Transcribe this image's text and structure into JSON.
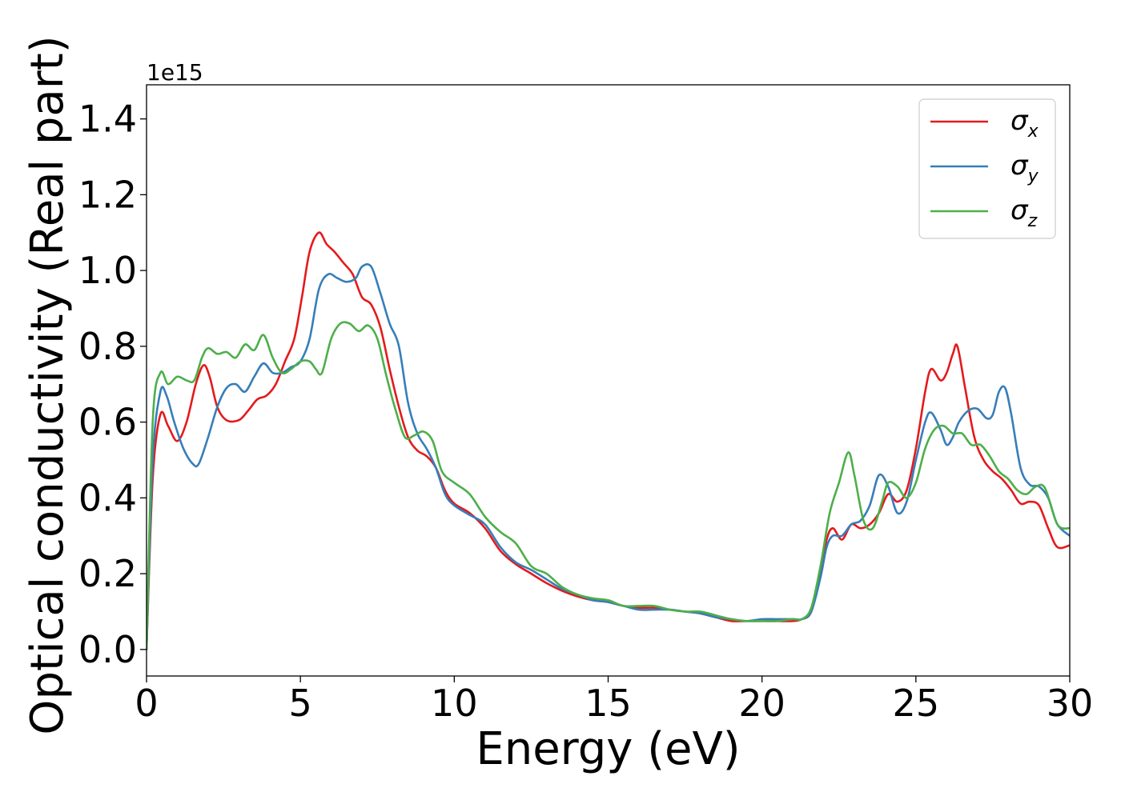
{
  "chart_data": {
    "type": "line",
    "xlabel": "Energy (eV)",
    "ylabel": "Optical conductivity (Real part)",
    "y_offset_text": "1e15",
    "xlim": [
      0,
      30
    ],
    "ylim": [
      -0.07,
      1.49
    ],
    "x_ticks": [
      0,
      5,
      10,
      15,
      20,
      25,
      30
    ],
    "x_tick_labels": [
      "0",
      "5",
      "10",
      "15",
      "20",
      "25",
      "30"
    ],
    "y_ticks": [
      0.0,
      0.2,
      0.4,
      0.6,
      0.8,
      1.0,
      1.2,
      1.4
    ],
    "y_tick_labels": [
      "0.0",
      "0.2",
      "0.4",
      "0.6",
      "0.8",
      "1.0",
      "1.2",
      "1.4"
    ],
    "grid": false,
    "legend_position": "top-right",
    "series": [
      {
        "name": "σx",
        "symbol": "σ",
        "subscript": "x",
        "color": "#e41a1c",
        "x": [
          0,
          0.2,
          0.45,
          0.7,
          1.0,
          1.3,
          1.6,
          1.85,
          2.05,
          2.3,
          2.6,
          3.0,
          3.3,
          3.6,
          3.9,
          4.2,
          4.5,
          4.8,
          5.05,
          5.3,
          5.6,
          5.85,
          6.1,
          6.4,
          6.7,
          7.0,
          7.3,
          7.6,
          7.9,
          8.2,
          8.5,
          8.8,
          9.1,
          9.4,
          9.7,
          10.0,
          10.5,
          11.0,
          11.5,
          12.0,
          12.5,
          13.0,
          13.5,
          14.0,
          14.5,
          15.0,
          15.5,
          16.0,
          16.5,
          17.0,
          17.5,
          18.0,
          18.5,
          19.0,
          19.5,
          20.0,
          20.5,
          21.0,
          21.3,
          21.6,
          21.9,
          22.1,
          22.3,
          22.6,
          22.9,
          23.2,
          23.5,
          23.8,
          24.1,
          24.4,
          24.7,
          25.0,
          25.3,
          25.5,
          25.8,
          26.0,
          26.2,
          26.35,
          26.6,
          26.9,
          27.2,
          27.5,
          27.8,
          28.1,
          28.4,
          28.7,
          29.0,
          29.3,
          29.6,
          30.0
        ],
        "y": [
          0.0,
          0.45,
          0.62,
          0.59,
          0.55,
          0.6,
          0.7,
          0.75,
          0.72,
          0.64,
          0.605,
          0.605,
          0.63,
          0.66,
          0.67,
          0.7,
          0.76,
          0.82,
          0.93,
          1.05,
          1.1,
          1.07,
          1.05,
          1.02,
          0.99,
          0.93,
          0.91,
          0.85,
          0.74,
          0.64,
          0.56,
          0.525,
          0.51,
          0.48,
          0.42,
          0.385,
          0.36,
          0.32,
          0.26,
          0.225,
          0.2,
          0.175,
          0.155,
          0.14,
          0.13,
          0.125,
          0.115,
          0.11,
          0.11,
          0.105,
          0.1,
          0.095,
          0.085,
          0.075,
          0.075,
          0.075,
          0.075,
          0.075,
          0.08,
          0.1,
          0.2,
          0.29,
          0.32,
          0.29,
          0.33,
          0.32,
          0.33,
          0.36,
          0.41,
          0.39,
          0.42,
          0.53,
          0.68,
          0.74,
          0.71,
          0.73,
          0.78,
          0.8,
          0.69,
          0.56,
          0.5,
          0.47,
          0.45,
          0.42,
          0.385,
          0.39,
          0.38,
          0.32,
          0.27,
          0.275
        ]
      },
      {
        "name": "σy",
        "symbol": "σ",
        "subscript": "y",
        "color": "#377eb8",
        "x": [
          0,
          0.2,
          0.45,
          0.65,
          0.9,
          1.2,
          1.5,
          1.7,
          2.0,
          2.3,
          2.6,
          2.9,
          3.2,
          3.5,
          3.8,
          4.1,
          4.4,
          4.7,
          5.0,
          5.3,
          5.6,
          5.9,
          6.2,
          6.5,
          6.8,
          7.0,
          7.3,
          7.6,
          7.9,
          8.2,
          8.5,
          8.8,
          9.1,
          9.4,
          9.7,
          10.0,
          10.5,
          11.0,
          11.5,
          12.0,
          12.5,
          13.0,
          13.5,
          14.0,
          14.5,
          15.0,
          15.5,
          16.0,
          16.5,
          17.0,
          17.5,
          18.0,
          18.5,
          19.0,
          19.5,
          20.0,
          20.5,
          21.0,
          21.3,
          21.6,
          21.9,
          22.1,
          22.3,
          22.6,
          22.9,
          23.2,
          23.5,
          23.8,
          24.1,
          24.4,
          24.7,
          25.0,
          25.3,
          25.5,
          25.8,
          26.0,
          26.2,
          26.4,
          26.7,
          27.0,
          27.3,
          27.5,
          27.7,
          27.9,
          28.1,
          28.4,
          28.7,
          29.0,
          29.3,
          29.6,
          30.0
        ],
        "y": [
          0.0,
          0.5,
          0.68,
          0.67,
          0.6,
          0.53,
          0.49,
          0.49,
          0.56,
          0.64,
          0.69,
          0.7,
          0.68,
          0.72,
          0.755,
          0.73,
          0.73,
          0.745,
          0.76,
          0.82,
          0.95,
          0.99,
          0.98,
          0.97,
          0.98,
          1.01,
          1.01,
          0.94,
          0.86,
          0.8,
          0.65,
          0.57,
          0.53,
          0.48,
          0.41,
          0.38,
          0.355,
          0.33,
          0.27,
          0.23,
          0.21,
          0.185,
          0.16,
          0.145,
          0.13,
          0.125,
          0.115,
          0.105,
          0.105,
          0.105,
          0.1,
          0.095,
          0.085,
          0.08,
          0.075,
          0.08,
          0.08,
          0.08,
          0.08,
          0.1,
          0.19,
          0.27,
          0.3,
          0.3,
          0.33,
          0.34,
          0.38,
          0.46,
          0.43,
          0.36,
          0.39,
          0.5,
          0.6,
          0.625,
          0.58,
          0.54,
          0.56,
          0.6,
          0.63,
          0.635,
          0.61,
          0.62,
          0.68,
          0.69,
          0.62,
          0.48,
          0.435,
          0.43,
          0.4,
          0.33,
          0.3
        ]
      },
      {
        "name": "σz",
        "symbol": "σ",
        "subscript": "z",
        "color": "#4daf4a",
        "x": [
          0,
          0.2,
          0.45,
          0.7,
          1.0,
          1.3,
          1.55,
          1.8,
          2.0,
          2.3,
          2.6,
          2.9,
          3.2,
          3.5,
          3.8,
          4.1,
          4.4,
          4.7,
          5.0,
          5.3,
          5.5,
          5.7,
          6.0,
          6.3,
          6.6,
          6.9,
          7.2,
          7.5,
          7.8,
          8.1,
          8.4,
          8.7,
          9.0,
          9.3,
          9.6,
          10.0,
          10.5,
          11.0,
          11.5,
          12.0,
          12.5,
          13.0,
          13.5,
          14.0,
          14.5,
          15.0,
          15.5,
          16.0,
          16.5,
          17.0,
          17.5,
          18.0,
          18.5,
          19.0,
          19.5,
          20.0,
          20.5,
          21.0,
          21.3,
          21.6,
          21.9,
          22.2,
          22.5,
          22.8,
          23.0,
          23.3,
          23.6,
          23.9,
          24.1,
          24.4,
          24.7,
          25.0,
          25.3,
          25.6,
          25.9,
          26.2,
          26.5,
          26.8,
          27.1,
          27.4,
          27.7,
          28.0,
          28.3,
          28.6,
          28.9,
          29.2,
          29.6,
          30.0
        ],
        "y": [
          0.0,
          0.6,
          0.73,
          0.7,
          0.72,
          0.71,
          0.71,
          0.77,
          0.795,
          0.78,
          0.785,
          0.77,
          0.805,
          0.79,
          0.83,
          0.77,
          0.73,
          0.74,
          0.76,
          0.76,
          0.74,
          0.73,
          0.82,
          0.86,
          0.86,
          0.84,
          0.855,
          0.82,
          0.72,
          0.63,
          0.56,
          0.565,
          0.575,
          0.55,
          0.47,
          0.44,
          0.41,
          0.35,
          0.31,
          0.28,
          0.22,
          0.2,
          0.165,
          0.145,
          0.135,
          0.13,
          0.115,
          0.115,
          0.115,
          0.105,
          0.1,
          0.1,
          0.09,
          0.08,
          0.075,
          0.075,
          0.075,
          0.08,
          0.08,
          0.11,
          0.22,
          0.36,
          0.44,
          0.52,
          0.46,
          0.34,
          0.32,
          0.39,
          0.44,
          0.43,
          0.4,
          0.44,
          0.53,
          0.58,
          0.59,
          0.57,
          0.57,
          0.54,
          0.54,
          0.51,
          0.47,
          0.45,
          0.42,
          0.41,
          0.43,
          0.425,
          0.33,
          0.32
        ]
      }
    ]
  }
}
